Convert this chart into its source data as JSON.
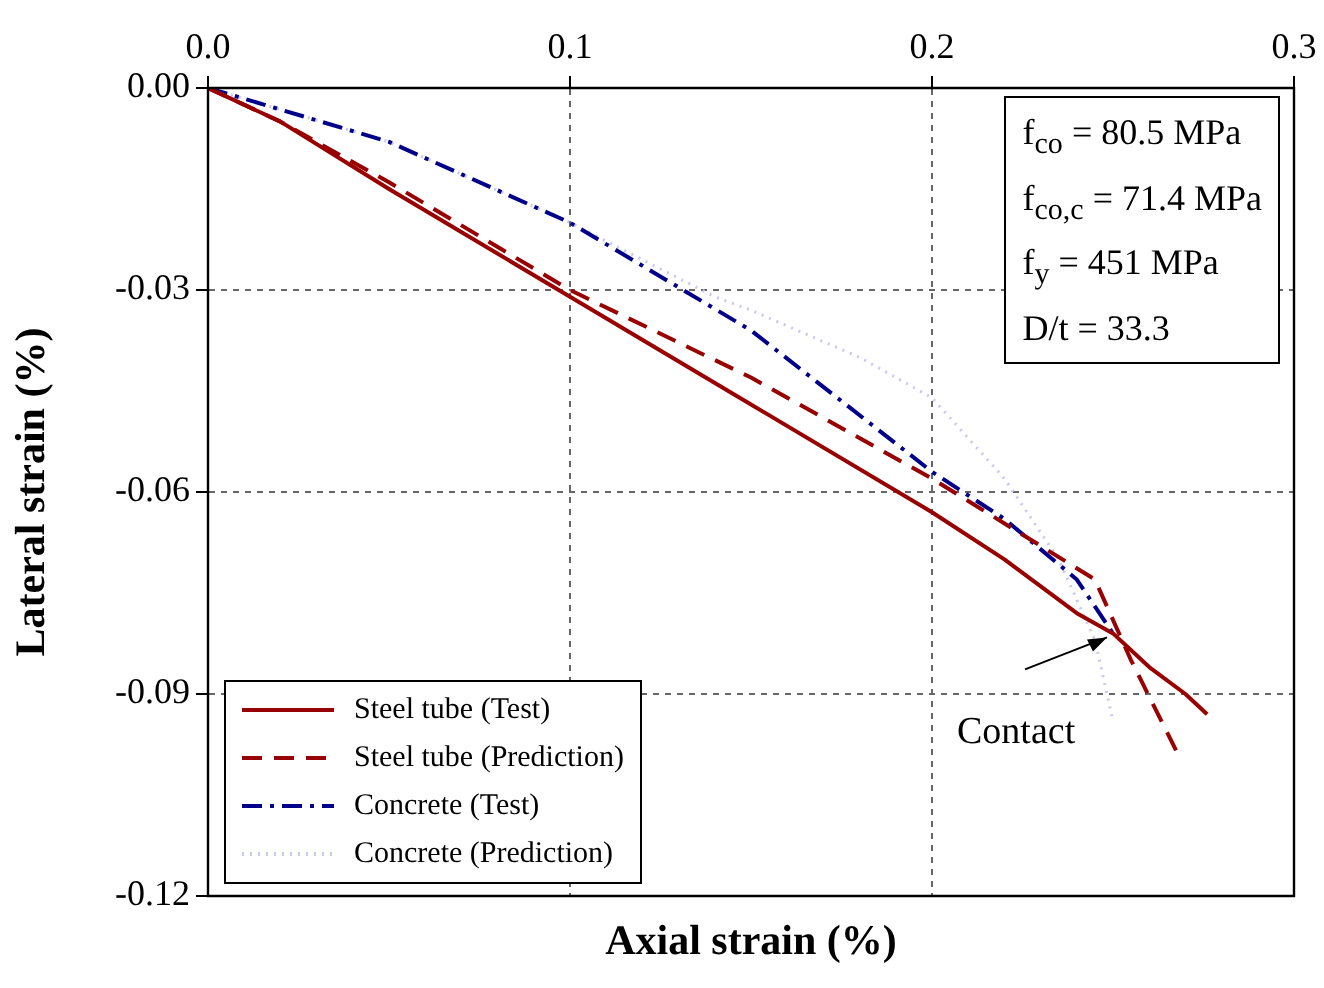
{
  "chart_data": {
    "type": "line",
    "xlabel": "Axial strain (%)",
    "ylabel": "Lateral strain (%)",
    "xlim": [
      0,
      0.3
    ],
    "xticks": [
      {
        "value": 0,
        "label": "0.0"
      },
      0.1,
      0.2,
      0.3
    ],
    "ylim": [
      -0.12,
      0
    ],
    "yticks": [
      {
        "value": -0.12,
        "label": "-0.12"
      },
      {
        "value": -0.09,
        "label": "-0.09"
      },
      {
        "value": -0.06,
        "label": "-0.06"
      },
      {
        "value": -0.03,
        "label": "-0.03"
      },
      {
        "value": 0,
        "label": "0.00"
      }
    ],
    "grid": true,
    "legend": "bottom left",
    "marker": "none",
    "series": [
      {
        "name": "Steel tube (Test)",
        "color": "#990000",
        "line_style": "solid",
        "x": [
          0,
          0.02,
          0.05,
          0.1,
          0.15,
          0.2,
          0.22,
          0.24,
          0.25,
          0.26,
          0.27,
          0.276
        ],
        "values": [
          0,
          -0.005,
          -0.015,
          -0.031,
          -0.047,
          -0.063,
          -0.07,
          -0.078,
          -0.081,
          -0.086,
          -0.09,
          -0.093
        ]
      },
      {
        "name": "Steel tube (Prediction)",
        "color": "#990000",
        "line_style": "dashed",
        "x": [
          0,
          0.02,
          0.05,
          0.1,
          0.15,
          0.2,
          0.23,
          0.245,
          0.255,
          0.268
        ],
        "values": [
          0,
          -0.005,
          -0.014,
          -0.03,
          -0.043,
          -0.058,
          -0.068,
          -0.073,
          -0.085,
          -0.099
        ]
      },
      {
        "name": "Concrete (Test)",
        "color": "#00008b",
        "line_style": "dashdot",
        "x": [
          0,
          0.05,
          0.1,
          0.15,
          0.2,
          0.22,
          0.24,
          0.25
        ],
        "values": [
          0,
          -0.008,
          -0.02,
          -0.036,
          -0.057,
          -0.064,
          -0.073,
          -0.081
        ]
      },
      {
        "name": "Concrete (Prediction)",
        "color": "#c8c8f0",
        "line_style": "dotted",
        "x": [
          0,
          0.05,
          0.1,
          0.14,
          0.15,
          0.18,
          0.2,
          0.22,
          0.235,
          0.245,
          0.25
        ],
        "values": [
          0,
          -0.008,
          -0.02,
          -0.031,
          -0.033,
          -0.04,
          -0.046,
          -0.058,
          -0.07,
          -0.082,
          -0.094
        ]
      }
    ],
    "annotations": [
      "f$_{co}$ = 80.5 MPa",
      "f$_{co,c}$ = 71.4 MPa",
      "f$_{y}$ = 451 MPa",
      "D/t = 33.3",
      {
        "text": "Contact",
        "x": 0.25,
        "y": -0.081
      }
    ]
  }
}
